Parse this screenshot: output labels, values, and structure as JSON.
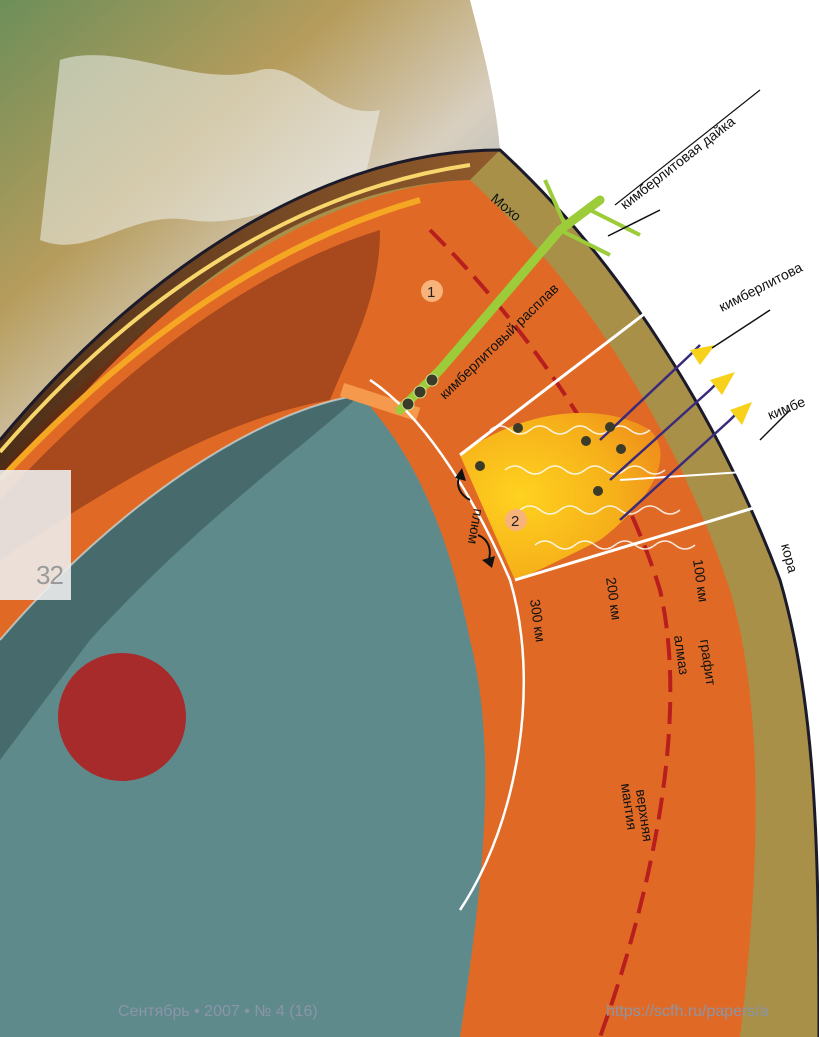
{
  "page_number": "32",
  "footer": {
    "issue": "Сентябрь • 2007 • № 4 (16)",
    "url": "https://scfh.ru/papers/a"
  },
  "labels": {
    "moho": "Мохо",
    "kimberlite_dike": "кимберлитовая дайка",
    "kimberlite_pipe": "кимберлитова",
    "kimberlite_pipe2": "кимбе",
    "kimberlite_melt": "кимберлитовый расплав",
    "plume": "плюм",
    "crust": "кора",
    "km100": "100 км",
    "km200": "200 км",
    "km300": "300 км",
    "graphite": "графит",
    "diamond": "алмаз",
    "upper_mantle_1": "верхняя",
    "upper_mantle_2": "мантия",
    "marker1": "1",
    "marker2": "2"
  },
  "colors": {
    "mantle": "#e06a25",
    "crust": "#a99048",
    "core": "#5f8a8c",
    "inner_core": "#b02020",
    "dike": "#9ccc3a",
    "magma": "#f7c21a",
    "graphite_diamond_line": "#b81e1e",
    "footer_text": "#8a95a8"
  }
}
